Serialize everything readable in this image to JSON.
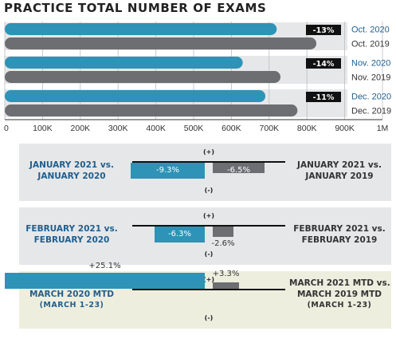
{
  "title": "PRACTICE TOTAL NUMBER OF EXAMS",
  "chart_data": [
    {
      "type": "bar",
      "orientation": "horizontal",
      "title": "PRACTICE TOTAL NUMBER OF EXAMS",
      "xlim": [
        0,
        1000000
      ],
      "x_ticks": [
        "0",
        "100K",
        "200K",
        "300K",
        "400K",
        "500K",
        "600K",
        "700K",
        "800K",
        "900K",
        "1M"
      ],
      "grid": "vertical",
      "groups": [
        {
          "change": "-13%",
          "bars": [
            {
              "name": "Oct. 2020",
              "value": 720000,
              "color": "#2e93b6"
            },
            {
              "name": "Oct. 2019",
              "value": 825000,
              "color": "#6d6e71"
            }
          ]
        },
        {
          "change": "-14%",
          "bars": [
            {
              "name": "Nov. 2020",
              "value": 630000,
              "color": "#2e93b6"
            },
            {
              "name": "Nov. 2019",
              "value": 730000,
              "color": "#6d6e71"
            }
          ]
        },
        {
          "change": "-11%",
          "bars": [
            {
              "name": "Dec. 2020",
              "value": 690000,
              "color": "#2e93b6"
            },
            {
              "name": "Dec. 2019",
              "value": 775000,
              "color": "#6d6e71"
            }
          ]
        }
      ]
    },
    {
      "type": "bar",
      "orientation": "diverging",
      "plus_label": "(+)",
      "minus_label": "(-)",
      "panels": [
        {
          "left_title": "JANUARY 2021 vs.",
          "left_subtitle": "JANUARY 2020",
          "right_title": "JANUARY 2021 vs.",
          "right_subtitle": "JANUARY 2019",
          "left_value": -9.3,
          "left_text": "-9.3%",
          "right_value": -6.5,
          "right_text": "-6.5%",
          "background": "#e6e7e9"
        },
        {
          "left_title": "FEBRUARY 2021 vs.",
          "left_subtitle": "FEBRUARY 2020",
          "right_title": "FEBRUARY 2021 vs.",
          "right_subtitle": "FEBRUARY 2019",
          "left_value": -6.3,
          "left_text": "-6.3%",
          "right_value": -2.6,
          "right_text": "-2.6%",
          "background": "#e6e7e9"
        },
        {
          "left_title": "MARCH 2021 MTD vs.",
          "left_subtitle": "MARCH 2020 MTD",
          "left_note": "(MARCH 1-23)",
          "right_title": "MARCH 2021 MTD vs.",
          "right_subtitle": "MARCH 2019 MTD",
          "right_note": "(MARCH 1-23)",
          "left_value": 25.1,
          "left_text": "+25.1%",
          "right_value": 3.3,
          "right_text": "+3.3%",
          "background": "#eeeedf"
        }
      ]
    }
  ],
  "colors": {
    "blue": "#2e93b6",
    "gray": "#6d6e71",
    "label_blue": "#1f5f8f",
    "label_dark": "#333333",
    "track": "#e6e7e9"
  }
}
